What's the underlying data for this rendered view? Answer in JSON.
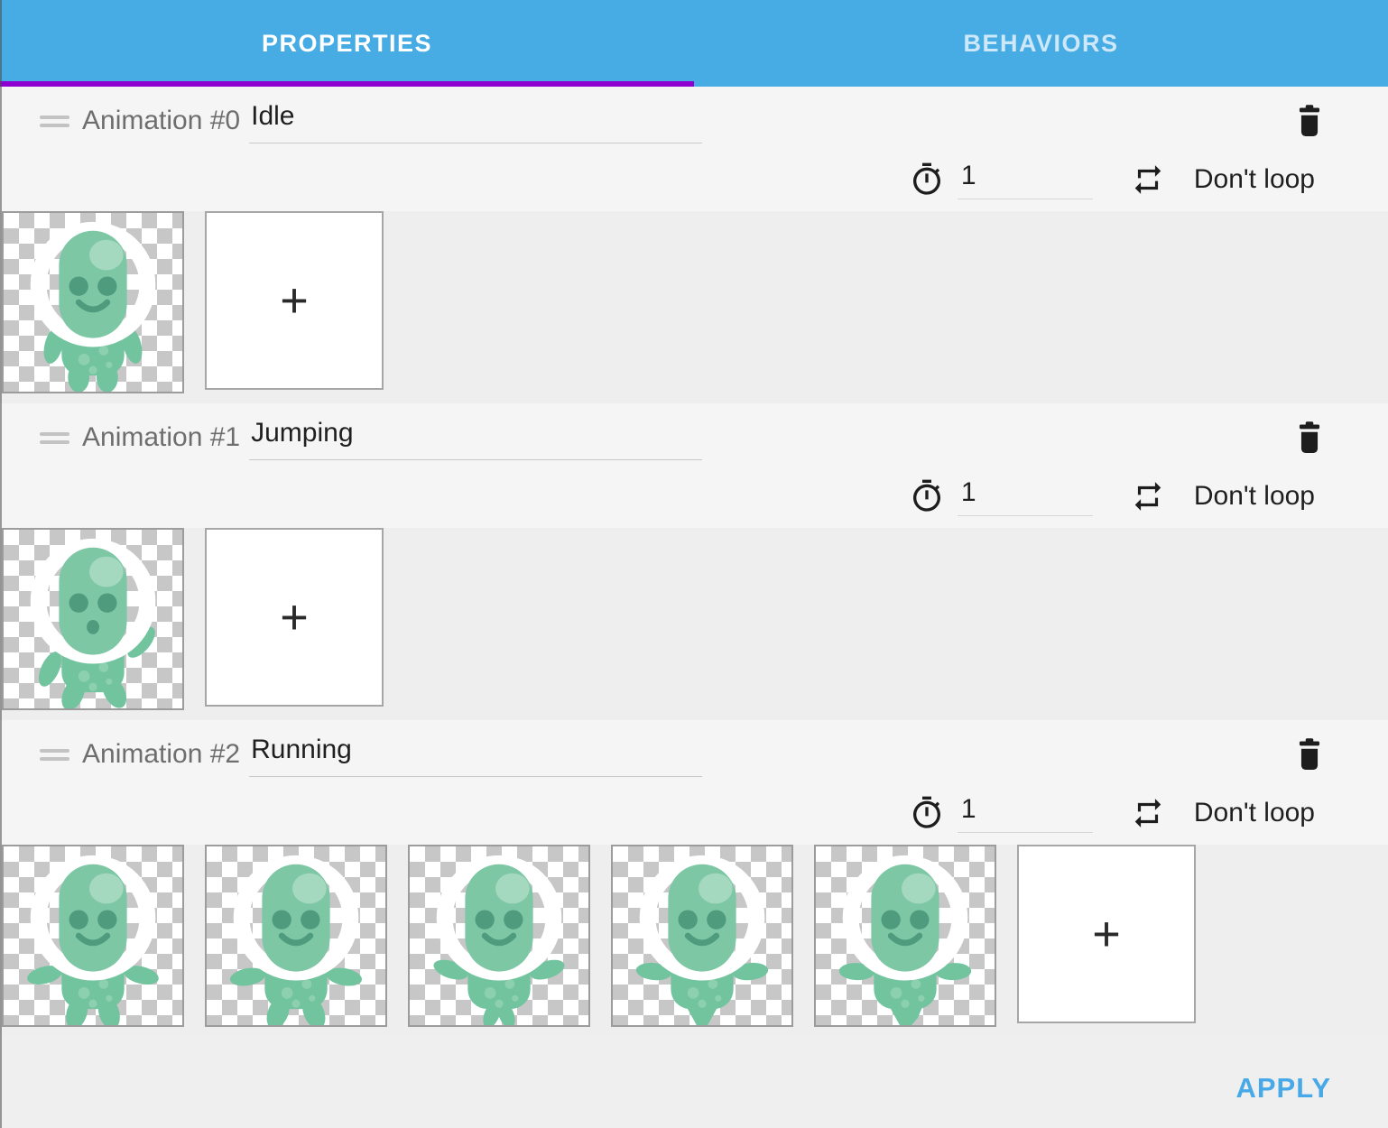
{
  "tab_bar": {
    "tabs": [
      {
        "label": "PROPERTIES",
        "active": true
      },
      {
        "label": "BEHAVIORS",
        "active": false
      }
    ]
  },
  "animations": [
    {
      "label": "Animation #0",
      "name": "Idle",
      "time_between_frames": "1",
      "loop_mode": "Don't loop",
      "frames": [
        "idle"
      ]
    },
    {
      "label": "Animation #1",
      "name": "Jumping",
      "time_between_frames": "1",
      "loop_mode": "Don't loop",
      "frames": [
        "jumping"
      ]
    },
    {
      "label": "Animation #2",
      "name": "Running",
      "time_between_frames": "1",
      "loop_mode": "Don't loop",
      "frames": [
        "run1",
        "run2",
        "run3",
        "run4",
        "run5"
      ]
    }
  ],
  "labels": {
    "add_frame": "+",
    "apply": "APPLY"
  },
  "icons": {
    "drag": "drag-handle",
    "delete": "trash-can",
    "timer": "stopwatch",
    "loop": "repeat-arrows",
    "add": "plus"
  },
  "colors": {
    "tab_bar_bg": "#47ABE4",
    "tab_indicator": "#8E00CF",
    "active_tab_text": "#FFFFFF",
    "inactive_tab_text": "#CDE8F8",
    "apply": "#47A9E8",
    "section_bg": "#F5F5F5",
    "strip_bg": "#EEEEEE",
    "footer_bg": "#EFEFEF",
    "icon": "#1D1D1D",
    "label_text": "#6E6E6E",
    "value_text": "#1F1F1F",
    "underline": "#C9C9C9",
    "checker": "#C7C7C7",
    "thumb_border": "#9C9C9C",
    "alien_body": "#72C49F",
    "alien_head": "#7DC7A5",
    "alien_feature": "#4F9B7E",
    "alien_highlight": "#A5D9BF",
    "alien_spot": "#8CD0B0",
    "helmet": "#FFFFFF"
  }
}
